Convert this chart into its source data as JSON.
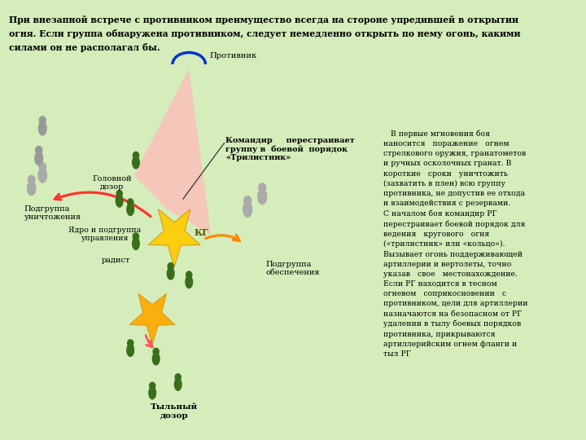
{
  "bg_color": "#d4edba",
  "header_line1": "При внезапной встрече с противником преимущество всегда на стороне упредившей в открытии",
  "header_line2": "огня. Если группа обнаружена противником, следует немедленно открыть по нему огонь, какими",
  "header_line3": "силами он не располагал бы.",
  "right_text_lines": [
    "   В первые мгновения боя",
    "наносится   поражение   огнем",
    "стрелкового оружия, гранатометов",
    "и ручных осколочных гранат. В",
    "короткие   сроки   уничтожить",
    "(захватить в плен) всю группу",
    "противника, не допустив ее отхода",
    "и взаимодействия с резервами.",
    "С началом боя командир РГ",
    "перестраивает боевой порядок для",
    "ведения   кругового   огня",
    "(«трилистник» или «кольцо»).",
    "Вызывает огонь поддерживающей",
    "артиллерии и вертолеты, точно",
    "указав   свое   местонахождение.",
    "Если РГ находится в тесном",
    "огневом   соприкосновении   с",
    "противником, цели для артиллерии",
    "назначаются на безопасном от РГ",
    "удалении в тылу боевых порядков",
    "противника, прикрываются",
    "артиллерийским огнем фланги и",
    "тыл РГ"
  ],
  "label_protivnik": "Противник",
  "label_golovnoy": "Головной\nдозор",
  "label_tylnoy": "Тыльный\nдозор",
  "label_yadro": "Ядро и подгруппа\nуправления",
  "label_radiist": "радист",
  "label_kg": "КГ",
  "label_unicht": "Подгруппа\nуничтожения",
  "label_obespech": "Подгруппа\nобеспечения",
  "label_komandir": "Командир     перестраивает\nгруппу в  боевой  порядок\n«Трилистник»"
}
